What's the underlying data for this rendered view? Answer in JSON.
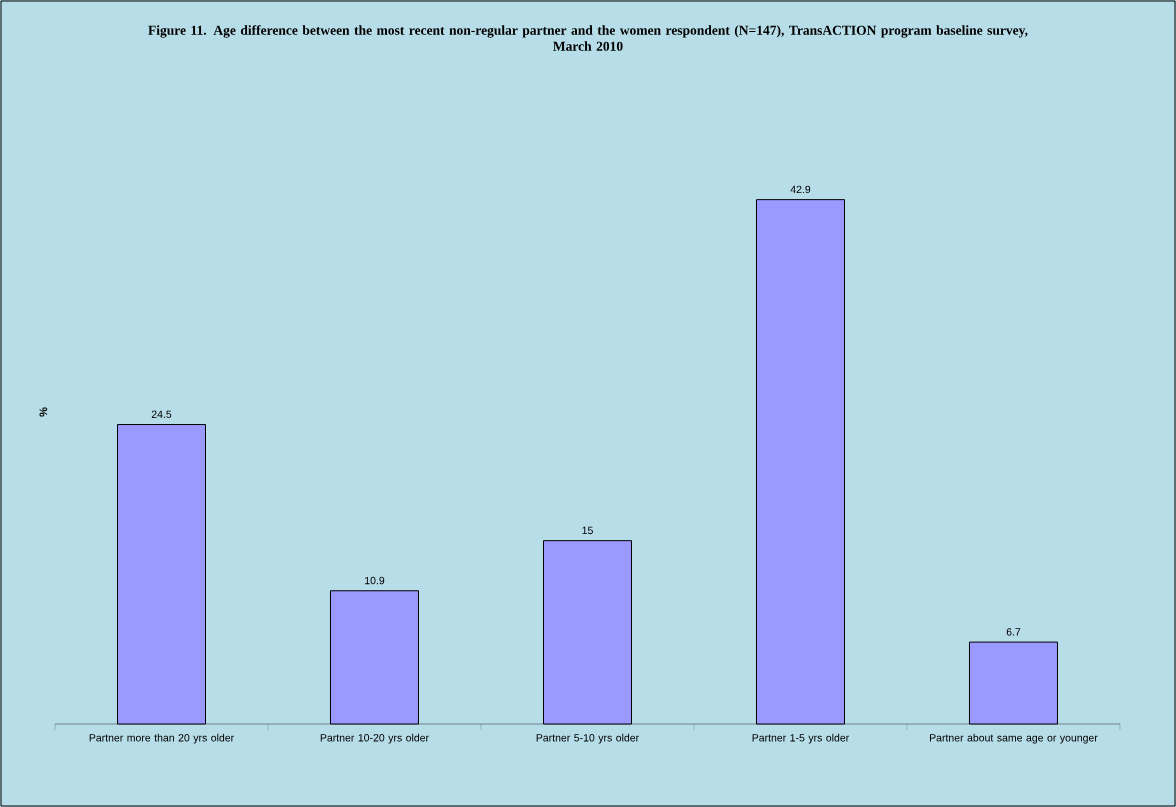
{
  "chart_data": {
    "type": "bar",
    "title": "Figure 11. Age difference between the most recent non-regular partner and the women respondent (N=147), TransACTION program baseline survey, March 2010",
    "ylabel": "%",
    "categories": [
      "Partner more than 20 yrs older",
      "Partner 10-20 yrs older",
      "Partner 5-10 yrs older",
      "Partner 1-5 yrs older",
      "Partner about same age or younger"
    ],
    "values": [
      24.5,
      10.9,
      15,
      42.9,
      6.7
    ],
    "color": "#9999ff",
    "data_labels": true
  }
}
